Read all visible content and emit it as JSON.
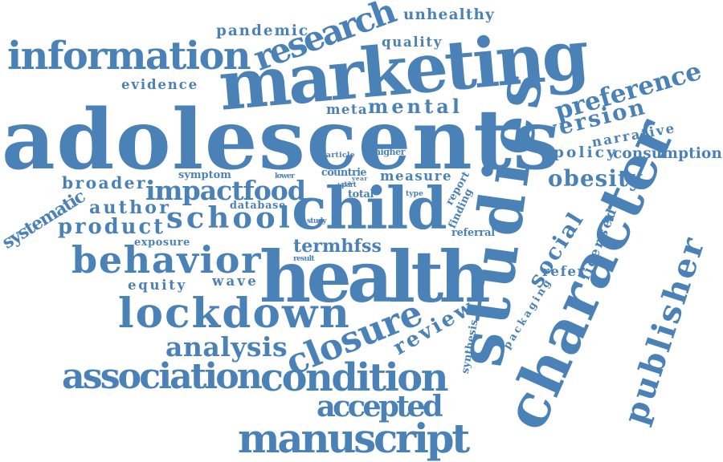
{
  "color": "#4a82b8",
  "words": [
    {
      "text": "adolescents"
    },
    {
      "text": "marketing"
    },
    {
      "text": "health"
    },
    {
      "text": "studies"
    },
    {
      "text": "character"
    },
    {
      "text": "child"
    },
    {
      "text": "information"
    },
    {
      "text": "lockdown"
    },
    {
      "text": "manuscript"
    },
    {
      "text": "condition"
    },
    {
      "text": "association"
    },
    {
      "text": "behavior"
    },
    {
      "text": "closure"
    },
    {
      "text": "research"
    },
    {
      "text": "publisher"
    },
    {
      "text": "school"
    },
    {
      "text": "accepted"
    },
    {
      "text": "analysis"
    },
    {
      "text": "preference"
    },
    {
      "text": "impactfood"
    },
    {
      "text": "obesity"
    },
    {
      "text": "version"
    },
    {
      "text": "product"
    },
    {
      "text": "author"
    },
    {
      "text": "mental"
    },
    {
      "text": "social"
    },
    {
      "text": "review"
    },
    {
      "text": "broader"
    },
    {
      "text": "systematic"
    },
    {
      "text": "pandemic"
    },
    {
      "text": "unhealthy"
    },
    {
      "text": "termhfss"
    },
    {
      "text": "policy"
    },
    {
      "text": "consumption"
    },
    {
      "text": "narrative"
    },
    {
      "text": "evidence"
    },
    {
      "text": "quality"
    },
    {
      "text": "meta"
    },
    {
      "text": "wave"
    },
    {
      "text": "equity"
    },
    {
      "text": "refer"
    },
    {
      "text": "licensed"
    },
    {
      "text": "measure"
    },
    {
      "text": "database"
    },
    {
      "text": "exposure"
    },
    {
      "text": "packaging"
    },
    {
      "text": "synthesis"
    },
    {
      "text": "symptom"
    },
    {
      "text": "countrie"
    },
    {
      "text": "total"
    },
    {
      "text": "referral"
    },
    {
      "text": "report"
    },
    {
      "text": "finding"
    },
    {
      "text": "article"
    },
    {
      "text": "higher"
    },
    {
      "text": "lower"
    },
    {
      "text": "part"
    },
    {
      "text": "data"
    },
    {
      "text": "year"
    },
    {
      "text": "type"
    },
    {
      "text": "study"
    },
    {
      "text": "result"
    }
  ]
}
